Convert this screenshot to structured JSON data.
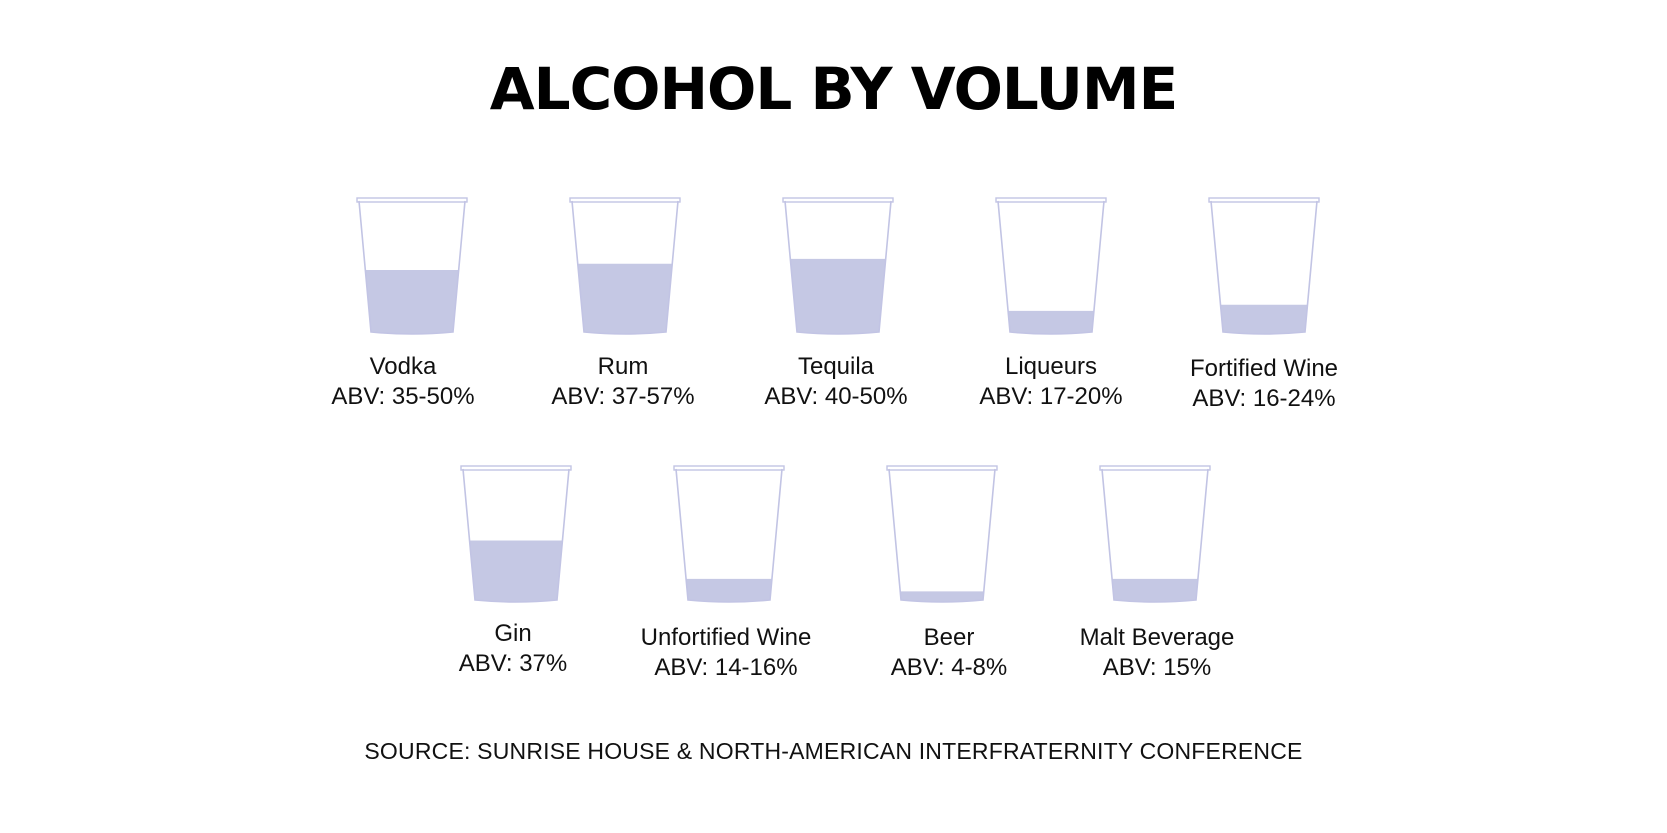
{
  "title": "ALCOHOL BY VOLUME",
  "source": "SOURCE: SUNRISE HOUSE & NORTH-AMERICAN INTERFRATERNITY CONFERENCE",
  "colors": {
    "fill": "#c5c8e4",
    "outline": "#c2c4e4",
    "text": "#111111"
  },
  "chart_data": {
    "type": "bar",
    "title": "ALCOHOL BY VOLUME",
    "unit": "% ABV",
    "items": [
      {
        "name": "Vodka",
        "abv_label": "ABV: 35-50%",
        "abv_min": 35,
        "abv_max": 50,
        "fill_level": 0.5
      },
      {
        "name": "Rum",
        "abv_label": "ABV: 37-57%",
        "abv_min": 37,
        "abv_max": 57,
        "fill_level": 0.55
      },
      {
        "name": "Tequila",
        "abv_label": "ABV: 40-50%",
        "abv_min": 40,
        "abv_max": 50,
        "fill_level": 0.59
      },
      {
        "name": "Liqueurs",
        "abv_label": "ABV: 17-20%",
        "abv_min": 17,
        "abv_max": 20,
        "fill_level": 0.17
      },
      {
        "name": "Fortified Wine",
        "abv_label": "ABV: 16-24%",
        "abv_min": 16,
        "abv_max": 24,
        "fill_level": 0.22
      },
      {
        "name": "Gin",
        "abv_label": "ABV: 37%",
        "abv_min": 37,
        "abv_max": 37,
        "fill_level": 0.48
      },
      {
        "name": "Unfortified Wine",
        "abv_label": "ABV: 14-16%",
        "abv_min": 14,
        "abv_max": 16,
        "fill_level": 0.17
      },
      {
        "name": "Beer",
        "abv_label": "ABV: 4-8%",
        "abv_min": 4,
        "abv_max": 8,
        "fill_level": 0.07
      },
      {
        "name": "Malt Beverage",
        "abv_label": "ABV: 15%",
        "abv_min": 15,
        "abv_max": 15,
        "fill_level": 0.17
      }
    ]
  }
}
